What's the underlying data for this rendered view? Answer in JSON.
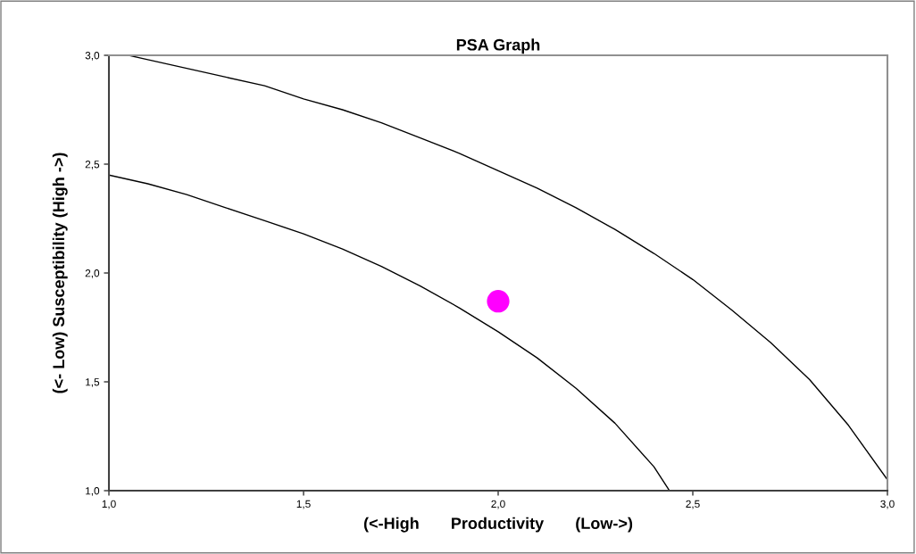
{
  "chart_data": {
    "type": "line",
    "title": "PSA Graph",
    "xlabel": "(<-High       Productivity       (Low->)",
    "ylabel": "(<- Low) Susceptibility (High ->)",
    "xlim": [
      1.0,
      3.0
    ],
    "ylim": [
      1.0,
      3.0
    ],
    "xticks": [
      {
        "value": 1.0,
        "label": "1,0"
      },
      {
        "value": 1.5,
        "label": "1,5"
      },
      {
        "value": 2.0,
        "label": "2,0"
      },
      {
        "value": 2.5,
        "label": "2,5"
      },
      {
        "value": 3.0,
        "label": "3,0"
      }
    ],
    "yticks": [
      {
        "value": 1.0,
        "label": "1,0"
      },
      {
        "value": 1.5,
        "label": "1,5"
      },
      {
        "value": 2.0,
        "label": "2,0"
      },
      {
        "value": 2.5,
        "label": "2,5"
      },
      {
        "value": 3.0,
        "label": "3,0"
      }
    ],
    "grid": false,
    "legend": false,
    "marker": "none",
    "line_style": "solid",
    "series": [
      {
        "color": "#000000",
        "x": [
          1.0,
          1.1,
          1.2,
          1.3,
          1.4,
          1.5,
          1.6,
          1.7,
          1.8,
          1.9,
          2.0,
          2.1,
          2.2,
          2.3,
          2.4,
          2.44
        ],
        "values": [
          2.45,
          2.41,
          2.36,
          2.3,
          2.24,
          2.18,
          2.11,
          2.03,
          1.94,
          1.84,
          1.73,
          1.61,
          1.47,
          1.31,
          1.11,
          1.0
        ]
      },
      {
        "color": "#000000",
        "x": [
          1.05,
          1.1,
          1.2,
          1.3,
          1.4,
          1.5,
          1.6,
          1.7,
          1.8,
          1.9,
          2.0,
          2.1,
          2.2,
          2.3,
          2.4,
          2.5,
          2.6,
          2.7,
          2.8,
          2.9,
          3.0
        ],
        "values": [
          3.0,
          2.98,
          2.94,
          2.9,
          2.86,
          2.8,
          2.75,
          2.69,
          2.62,
          2.55,
          2.47,
          2.39,
          2.3,
          2.2,
          2.09,
          1.97,
          1.83,
          1.68,
          1.51,
          1.3,
          1.05
        ]
      },
      {
        "type": "scatter",
        "color": "#ff00ff",
        "marker": "circle",
        "x": [
          2.0
        ],
        "values": [
          1.87
        ]
      }
    ]
  }
}
